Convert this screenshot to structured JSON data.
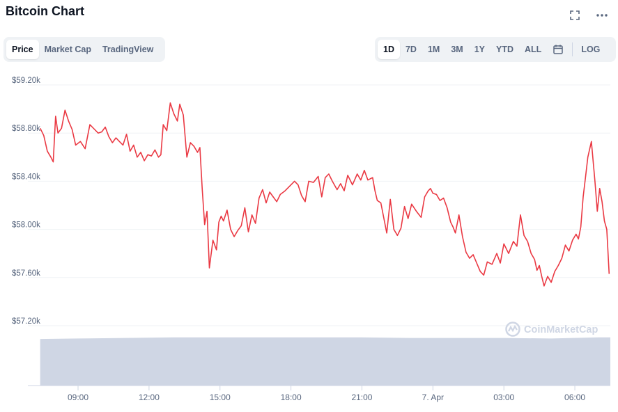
{
  "header": {
    "title": "Bitcoin Chart",
    "fullscreen_icon": "fullscreen-icon",
    "more_icon": "more-icon"
  },
  "view_tabs": [
    {
      "label": "Price",
      "active": true
    },
    {
      "label": "Market Cap",
      "active": false
    },
    {
      "label": "TradingView",
      "active": false
    }
  ],
  "range_tabs": [
    {
      "label": "1D",
      "active": true
    },
    {
      "label": "7D",
      "active": false
    },
    {
      "label": "1M",
      "active": false
    },
    {
      "label": "3M",
      "active": false
    },
    {
      "label": "1Y",
      "active": false
    },
    {
      "label": "YTD",
      "active": false
    },
    {
      "label": "ALL",
      "active": false
    }
  ],
  "calendar_icon": "calendar-icon",
  "log_label": "LOG",
  "watermark": "CoinMarketCap",
  "colors": {
    "price_line": "#ea3943",
    "volume_fill": "#cfd6e4",
    "grid": "#eff2f5",
    "text_muted": "#58667e"
  },
  "chart_data": {
    "type": "line",
    "x_label_ticks": [
      "09:00",
      "12:00",
      "15:00",
      "18:00",
      "21:00",
      "7. Apr",
      "03:00",
      "06:00"
    ],
    "y_ticks": [
      57200,
      57600,
      58000,
      58400,
      58800,
      59200
    ],
    "y_tick_labels": [
      "$57.20k",
      "$57.60k",
      "$58.00k",
      "$58.40k",
      "$58.80k",
      "$59.20k"
    ],
    "ylim": [
      57200,
      59200
    ],
    "xlim_hours": [
      7.35,
      31.5
    ],
    "series": [
      {
        "role": "price",
        "x_hours": [
          7.4,
          7.55,
          7.7,
          7.85,
          7.95,
          8.05,
          8.15,
          8.3,
          8.45,
          8.6,
          8.75,
          8.9,
          9.1,
          9.3,
          9.5,
          9.7,
          9.85,
          10.0,
          10.15,
          10.3,
          10.45,
          10.6,
          10.75,
          10.9,
          11.05,
          11.2,
          11.35,
          11.5,
          11.65,
          11.8,
          11.95,
          12.1,
          12.25,
          12.4,
          12.5,
          12.6,
          12.75,
          12.9,
          13.05,
          13.2,
          13.3,
          13.45,
          13.6,
          13.75,
          13.9,
          14.05,
          14.15,
          14.25,
          14.35,
          14.45,
          14.55,
          14.7,
          14.85,
          14.95,
          15.05,
          15.15,
          15.3,
          15.45,
          15.6,
          15.75,
          15.9,
          16.05,
          16.2,
          16.35,
          16.5,
          16.65,
          16.8,
          16.95,
          17.1,
          17.25,
          17.4,
          17.55,
          17.75,
          17.95,
          18.15,
          18.3,
          18.45,
          18.6,
          18.75,
          18.95,
          19.15,
          19.3,
          19.45,
          19.6,
          19.75,
          19.95,
          20.1,
          20.25,
          20.4,
          20.6,
          20.8,
          20.95,
          21.1,
          21.25,
          21.35,
          21.45,
          21.55,
          21.65,
          21.8,
          21.95,
          22.05,
          22.2,
          22.35,
          22.5,
          22.65,
          22.8,
          22.95,
          23.1,
          23.3,
          23.5,
          23.65,
          23.8,
          23.9,
          24.0,
          24.15,
          24.3,
          24.45,
          24.6,
          24.75,
          24.85,
          24.95,
          25.1,
          25.25,
          25.4,
          25.55,
          25.7,
          25.85,
          26.0,
          26.15,
          26.3,
          26.5,
          26.7,
          26.85,
          27.0,
          27.2,
          27.4,
          27.55,
          27.7,
          27.85,
          28.0,
          28.15,
          28.3,
          28.4,
          28.5,
          28.6,
          28.7,
          28.85,
          29.0,
          29.15,
          29.3,
          29.45,
          29.6,
          29.75,
          29.9,
          30.05,
          30.15,
          30.25,
          30.35,
          30.45,
          30.55,
          30.7,
          30.85,
          30.95,
          31.05,
          31.15,
          31.25,
          31.35,
          31.45
        ],
        "y": [
          58840,
          58780,
          58650,
          58600,
          58560,
          58940,
          58800,
          58840,
          58990,
          58900,
          58830,
          58700,
          58730,
          58670,
          58870,
          58830,
          58800,
          58810,
          58850,
          58770,
          58720,
          58760,
          58730,
          58700,
          58790,
          58650,
          58700,
          58600,
          58640,
          58570,
          58620,
          58610,
          58660,
          58600,
          58620,
          58870,
          58820,
          59050,
          58960,
          58900,
          59040,
          58950,
          58600,
          58720,
          58690,
          58640,
          58680,
          58330,
          58040,
          58150,
          57680,
          57910,
          57830,
          58060,
          58110,
          58070,
          58160,
          58000,
          57940,
          57990,
          58030,
          58180,
          57980,
          58120,
          58050,
          58260,
          58330,
          58220,
          58310,
          58270,
          58230,
          58290,
          58320,
          58360,
          58400,
          58370,
          58280,
          58230,
          58400,
          58390,
          58440,
          58270,
          58430,
          58460,
          58400,
          58330,
          58380,
          58320,
          58450,
          58370,
          58460,
          58410,
          58490,
          58410,
          58420,
          58430,
          58320,
          58240,
          58220,
          58070,
          57970,
          58250,
          58000,
          57950,
          58010,
          58190,
          58090,
          58210,
          58150,
          58100,
          58270,
          58320,
          58340,
          58300,
          58290,
          58240,
          58260,
          58180,
          58060,
          58020,
          57970,
          58120,
          57940,
          57810,
          57760,
          57790,
          57720,
          57650,
          57620,
          57730,
          57710,
          57800,
          57720,
          57880,
          57800,
          57900,
          57860,
          58120,
          57950,
          57900,
          57800,
          57750,
          57660,
          57700,
          57610,
          57530,
          57610,
          57560,
          57650,
          57700,
          57760,
          57870,
          57820,
          57910,
          57960,
          57920,
          58020,
          58270,
          58430,
          58600,
          58730,
          58400,
          58150,
          58340,
          58230,
          58070,
          58000,
          57630
        ]
      },
      {
        "role": "volume",
        "x_hours": [
          7.4,
          9.0,
          11.0,
          13.0,
          15.0,
          17.0,
          19.0,
          21.0,
          23.0,
          25.0,
          27.0,
          29.0,
          31.0,
          31.5
        ],
        "relative": [
          0.88,
          0.89,
          0.9,
          0.91,
          0.91,
          0.91,
          0.91,
          0.91,
          0.9,
          0.9,
          0.9,
          0.89,
          0.91,
          0.91
        ]
      }
    ]
  }
}
